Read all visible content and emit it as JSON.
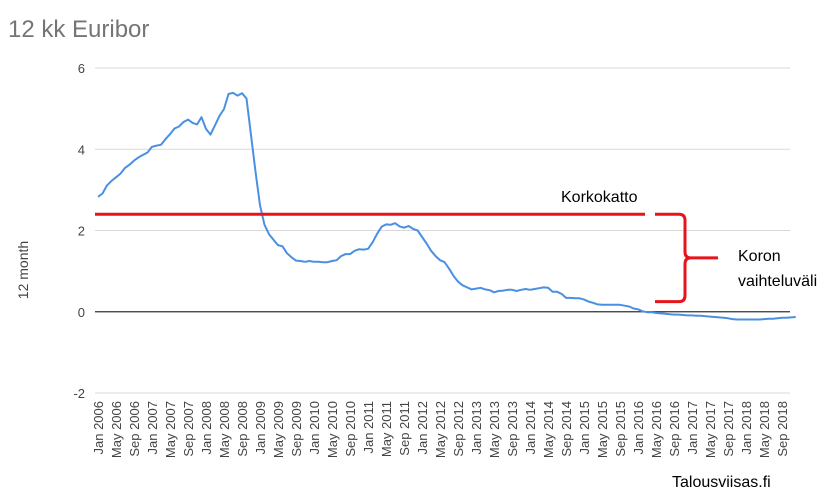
{
  "chart_data": {
    "type": "line",
    "title": "12 kk Euribor",
    "ylabel": "12 month",
    "xlabel": "",
    "ylim": [
      -2,
      6
    ],
    "yticks": [
      -2,
      0,
      2,
      4,
      6
    ],
    "grid": true,
    "x_tick_labels": [
      "Jan 2006",
      "May 2006",
      "Sep 2006",
      "Jan 2007",
      "May 2007",
      "Sep 2007",
      "Jan 2008",
      "May 2008",
      "Sep 2008",
      "Jan 2009",
      "May 2009",
      "Sep 2009",
      "Jan 2010",
      "May 2010",
      "Sep 2010",
      "Jan 2011",
      "May 2011",
      "Sep 2011",
      "Jan 2012",
      "May 2012",
      "Sep 2012",
      "Jan 2013",
      "May 2013",
      "Sep 2013",
      "Jan 2014",
      "May 2014",
      "Sep 2014",
      "Jan 2015",
      "May 2015",
      "Sep 2015",
      "Jan 2016",
      "May 2016",
      "Sep 2016",
      "Jan 2017",
      "May 2017",
      "Sep 2017",
      "Jan 2018",
      "May 2018",
      "Sep 2018"
    ],
    "series": [
      {
        "color": "#4a90e2",
        "x_start": "Jan 2006",
        "values": [
          2.83,
          2.91,
          3.11,
          3.22,
          3.31,
          3.4,
          3.54,
          3.62,
          3.72,
          3.8,
          3.86,
          3.92,
          4.06,
          4.09,
          4.11,
          4.25,
          4.37,
          4.51,
          4.56,
          4.67,
          4.73,
          4.65,
          4.61,
          4.79,
          4.5,
          4.36,
          4.59,
          4.82,
          4.99,
          5.36,
          5.39,
          5.32,
          5.38,
          5.25,
          4.35,
          3.45,
          2.62,
          2.14,
          1.91,
          1.77,
          1.64,
          1.61,
          1.44,
          1.34,
          1.26,
          1.25,
          1.23,
          1.25,
          1.23,
          1.23,
          1.22,
          1.22,
          1.25,
          1.27,
          1.37,
          1.42,
          1.42,
          1.5,
          1.54,
          1.53,
          1.55,
          1.71,
          1.92,
          2.09,
          2.15,
          2.14,
          2.18,
          2.1,
          2.07,
          2.11,
          2.04,
          2.0,
          1.84,
          1.68,
          1.5,
          1.37,
          1.27,
          1.22,
          1.06,
          0.88,
          0.74,
          0.65,
          0.6,
          0.55,
          0.57,
          0.59,
          0.55,
          0.53,
          0.48,
          0.51,
          0.52,
          0.54,
          0.54,
          0.51,
          0.54,
          0.56,
          0.54,
          0.56,
          0.58,
          0.6,
          0.59,
          0.49,
          0.49,
          0.44,
          0.34,
          0.34,
          0.33,
          0.33,
          0.3,
          0.25,
          0.22,
          0.18,
          0.17,
          0.17,
          0.17,
          0.17,
          0.17,
          0.15,
          0.13,
          0.08,
          0.06,
          0.01,
          -0.01,
          -0.01,
          -0.03,
          -0.04,
          -0.05,
          -0.06,
          -0.07,
          -0.07,
          -0.08,
          -0.09,
          -0.09,
          -0.1,
          -0.1,
          -0.11,
          -0.12,
          -0.13,
          -0.14,
          -0.15,
          -0.16,
          -0.18,
          -0.19,
          -0.19,
          -0.19,
          -0.19,
          -0.19,
          -0.19,
          -0.18,
          -0.17,
          -0.17,
          -0.16,
          -0.15,
          -0.15,
          -0.14,
          -0.13
        ]
      }
    ],
    "annotations": {
      "cap_value": 2.4,
      "cap_color": "#e8141b",
      "cap_label": "Korkokatto",
      "range_label_line1": "Koron",
      "range_label_line2": "vaihteluväli",
      "bracket_color": "#e8141b",
      "bracket_from": 0.25,
      "bracket_to": 2.4
    },
    "zero_line_color": "#333333",
    "grid_color": "#d9d9d9"
  },
  "footer": {
    "credit": "Talousviisas.fi"
  }
}
